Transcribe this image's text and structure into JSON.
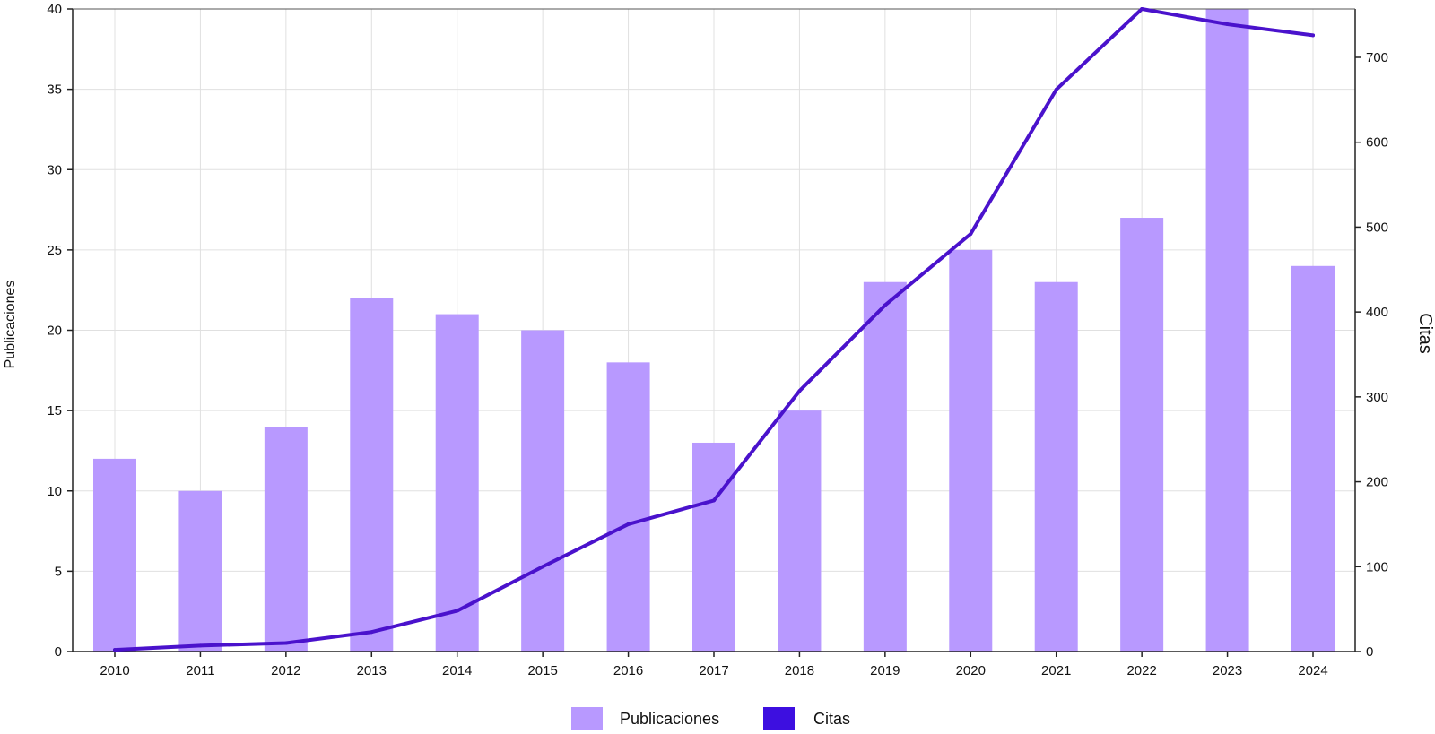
{
  "chart_data": {
    "type": "bar",
    "categories": [
      "2010",
      "2011",
      "2012",
      "2013",
      "2014",
      "2015",
      "2016",
      "2017",
      "2018",
      "2019",
      "2020",
      "2021",
      "2022",
      "2023",
      "2024"
    ],
    "series": [
      {
        "name": "Publicaciones",
        "type": "bar",
        "axis": "left",
        "color": "#b899ff",
        "values": [
          12,
          10,
          14,
          22,
          21,
          20,
          18,
          13,
          15,
          23,
          25,
          23,
          27,
          40,
          24
        ]
      },
      {
        "name": "Citas",
        "type": "line",
        "axis": "right",
        "color": "#4a12cc",
        "values": [
          2,
          7,
          10,
          23,
          48,
          100,
          150,
          178,
          307,
          408,
          492,
          662,
          757,
          739,
          726
        ]
      }
    ],
    "ylabel": "Publicaciones",
    "y2label": "Citas",
    "xlabel": "",
    "title": "",
    "ylim": [
      0,
      40
    ],
    "y2lim": [
      0,
      757
    ],
    "yticks": [
      "0",
      "5",
      "10",
      "15",
      "20",
      "25",
      "30",
      "35",
      "40"
    ],
    "y2ticks": [
      "0",
      "100",
      "200",
      "300",
      "400",
      "500",
      "600",
      "700"
    ],
    "grid": true,
    "legend_position": "bottom-center",
    "legend_swatch_colors": {
      "Publicaciones": "#b899ff",
      "Citas": "#3d0fe0"
    }
  }
}
